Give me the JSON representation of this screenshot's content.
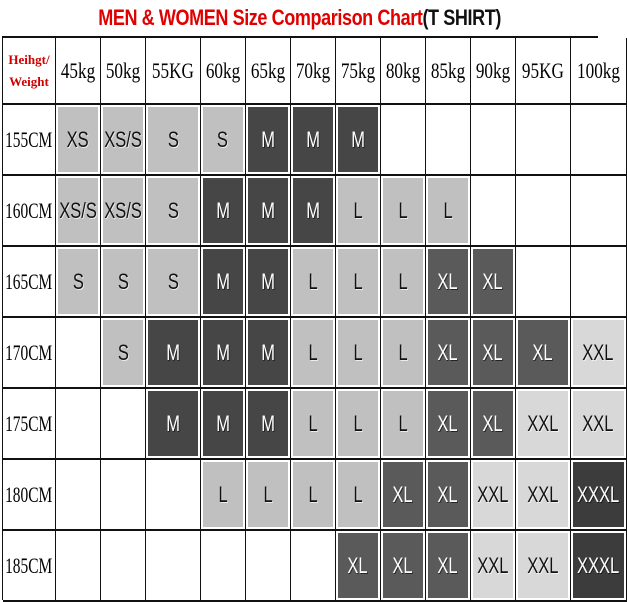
{
  "chart_data": {
    "type": "table",
    "title_red": "MEN & WOMEN Size Comparison Chart",
    "title_black": "(T SHIRT)",
    "corner_label": [
      "Heihgt/",
      "Weight"
    ],
    "columns": [
      "45kg",
      "50kg",
      "55KG",
      "60kg",
      "65kg",
      "70kg",
      "75kg",
      "80kg",
      "85kg",
      "90kg",
      "95KG",
      "100kg"
    ],
    "rows": [
      {
        "height": "155CM",
        "sizes": [
          "XS",
          "XS/S",
          "S",
          "S",
          "M",
          "M",
          "M",
          "",
          "",
          "",
          "",
          ""
        ]
      },
      {
        "height": "160CM",
        "sizes": [
          "XS/S",
          "XS/S",
          "S",
          "M",
          "M",
          "M",
          "L",
          "L",
          "L",
          "",
          "",
          ""
        ]
      },
      {
        "height": "165CM",
        "sizes": [
          "S",
          "S",
          "S",
          "M",
          "M",
          "L",
          "L",
          "L",
          "XL",
          "XL",
          "",
          ""
        ]
      },
      {
        "height": "170CM",
        "sizes": [
          "",
          "S",
          "M",
          "M",
          "M",
          "L",
          "L",
          "L",
          "XL",
          "XL",
          "XL",
          "XXL"
        ]
      },
      {
        "height": "175CM",
        "sizes": [
          "",
          "",
          "M",
          "M",
          "M",
          "L",
          "L",
          "L",
          "XL",
          "XL",
          "XXL",
          "XXL"
        ]
      },
      {
        "height": "180CM",
        "sizes": [
          "",
          "",
          "",
          "L",
          "L",
          "L",
          "L",
          "XL",
          "XL",
          "XXL",
          "XXL",
          "XXXL"
        ]
      },
      {
        "height": "185CM",
        "sizes": [
          "",
          "",
          "",
          "",
          "",
          "",
          "XL",
          "XL",
          "XL",
          "XXL",
          "XXL",
          "XXXL"
        ]
      }
    ],
    "size_colors": {
      "XS": {
        "bg": "#c0c0c0",
        "fg": "#111111"
      },
      "XS/S": {
        "bg": "#c0c0c0",
        "fg": "#111111"
      },
      "S": {
        "bg": "#c0c0c0",
        "fg": "#111111"
      },
      "M": {
        "bg": "#464646",
        "fg": "#ffffff"
      },
      "L": {
        "bg": "#c0c0c0",
        "fg": "#111111"
      },
      "XL": {
        "bg": "#5a5a5a",
        "fg": "#ffffff"
      },
      "XXL": {
        "bg": "#d8d8d8",
        "fg": "#111111"
      },
      "XXXL": {
        "bg": "#3c3c3c",
        "fg": "#ffffff"
      }
    }
  }
}
